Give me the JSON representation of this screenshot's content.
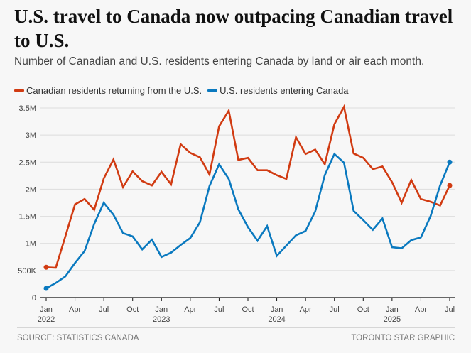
{
  "header": {
    "title": "U.S. travel to Canada now outpacing Canadian travel to U.S.",
    "subtitle": "Number of Canadian and U.S. residents entering Canada by land or air each month."
  },
  "footer": {
    "source": "SOURCE: STATISTICS CANADA",
    "credit": "TORONTO STAR GRAPHIC"
  },
  "chart_data": {
    "type": "line",
    "title": "U.S. travel to Canada now outpacing Canadian travel to U.S.",
    "subtitle": "Number of Canadian and U.S. residents entering Canada by land or air each month.",
    "xlabel": "",
    "ylabel": "",
    "ylim": [
      0,
      3500000
    ],
    "grid": true,
    "legend_position": "top-left",
    "y_ticks": [
      {
        "value": 0,
        "label": "0"
      },
      {
        "value": 500000,
        "label": "500K"
      },
      {
        "value": 1000000,
        "label": "1M"
      },
      {
        "value": 1500000,
        "label": "1.5M"
      },
      {
        "value": 2000000,
        "label": "2M"
      },
      {
        "value": 2500000,
        "label": "2.5M"
      },
      {
        "value": 3000000,
        "label": "3M"
      },
      {
        "value": 3500000,
        "label": "3.5M"
      }
    ],
    "x_ticks": [
      {
        "index": 0,
        "label": "Jan",
        "year": "2022"
      },
      {
        "index": 3,
        "label": "Apr",
        "year": ""
      },
      {
        "index": 6,
        "label": "Jul",
        "year": ""
      },
      {
        "index": 9,
        "label": "Oct",
        "year": ""
      },
      {
        "index": 12,
        "label": "Jan",
        "year": "2023"
      },
      {
        "index": 15,
        "label": "Apr",
        "year": ""
      },
      {
        "index": 18,
        "label": "Jul",
        "year": ""
      },
      {
        "index": 21,
        "label": "Oct",
        "year": ""
      },
      {
        "index": 24,
        "label": "Jan",
        "year": "2024"
      },
      {
        "index": 27,
        "label": "Apr",
        "year": ""
      },
      {
        "index": 30,
        "label": "Jul",
        "year": ""
      },
      {
        "index": 33,
        "label": "Oct",
        "year": ""
      },
      {
        "index": 36,
        "label": "Jan",
        "year": "2025"
      },
      {
        "index": 39,
        "label": "Apr",
        "year": ""
      },
      {
        "index": 42,
        "label": "Jul",
        "year": ""
      }
    ],
    "x": [
      "2022-01",
      "2022-02",
      "2022-03",
      "2022-04",
      "2022-05",
      "2022-06",
      "2022-07",
      "2022-08",
      "2022-09",
      "2022-10",
      "2022-11",
      "2022-12",
      "2023-01",
      "2023-02",
      "2023-03",
      "2023-04",
      "2023-05",
      "2023-06",
      "2023-07",
      "2023-08",
      "2023-09",
      "2023-10",
      "2023-11",
      "2023-12",
      "2024-01",
      "2024-02",
      "2024-03",
      "2024-04",
      "2024-05",
      "2024-06",
      "2024-07",
      "2024-08",
      "2024-09",
      "2024-10",
      "2024-11",
      "2024-12",
      "2025-01",
      "2025-02",
      "2025-03",
      "2025-04",
      "2025-05",
      "2025-06",
      "2025-07"
    ],
    "series": [
      {
        "name": "Canadian residents returning from the U.S.",
        "color": "#d13b12",
        "values": [
          560000,
          550000,
          1130000,
          1720000,
          1820000,
          1620000,
          2200000,
          2550000,
          2040000,
          2330000,
          2150000,
          2070000,
          2320000,
          2090000,
          2830000,
          2670000,
          2590000,
          2270000,
          3160000,
          3450000,
          2540000,
          2580000,
          2350000,
          2350000,
          2260000,
          2190000,
          2960000,
          2650000,
          2730000,
          2460000,
          3200000,
          3520000,
          2660000,
          2580000,
          2370000,
          2420000,
          2130000,
          1750000,
          2170000,
          1820000,
          1770000,
          1700000,
          2070000
        ]
      },
      {
        "name": "U.S. residents entering Canada",
        "color": "#0a79bf",
        "values": [
          170000,
          270000,
          390000,
          640000,
          860000,
          1360000,
          1750000,
          1530000,
          1190000,
          1130000,
          890000,
          1070000,
          750000,
          830000,
          970000,
          1100000,
          1390000,
          2060000,
          2460000,
          2190000,
          1630000,
          1300000,
          1050000,
          1320000,
          770000,
          960000,
          1150000,
          1230000,
          1590000,
          2260000,
          2650000,
          2490000,
          1600000,
          1430000,
          1250000,
          1460000,
          930000,
          910000,
          1060000,
          1110000,
          1500000,
          2070000,
          2500000
        ]
      }
    ]
  }
}
